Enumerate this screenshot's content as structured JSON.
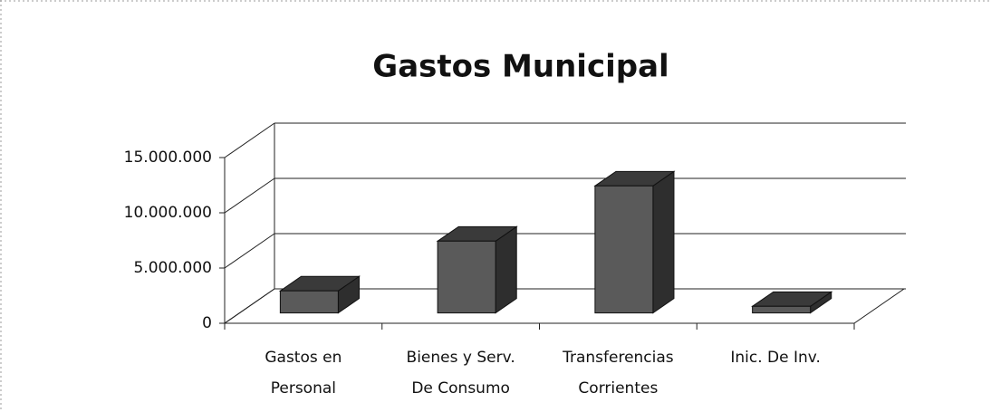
{
  "chart_data": {
    "type": "bar3d",
    "title": "Gastos Municipal",
    "categories": [
      [
        "Gastos en",
        "Personal"
      ],
      [
        "Bienes y Serv.",
        "De Consumo"
      ],
      [
        "Transferencias",
        "Corrientes"
      ],
      [
        "Inic. De Inv."
      ]
    ],
    "values": [
      2000000,
      6500000,
      11500000,
      600000
    ],
    "color": "#5a5a5a",
    "ylim": [
      0,
      15000000
    ],
    "yticks": [
      0,
      {
        "value": 5000000,
        "label": "5.000.000"
      },
      {
        "value": 10000000,
        "label": "10.000.000"
      },
      {
        "value": 15000000,
        "label": "15.000.000"
      }
    ],
    "grid": true
  }
}
